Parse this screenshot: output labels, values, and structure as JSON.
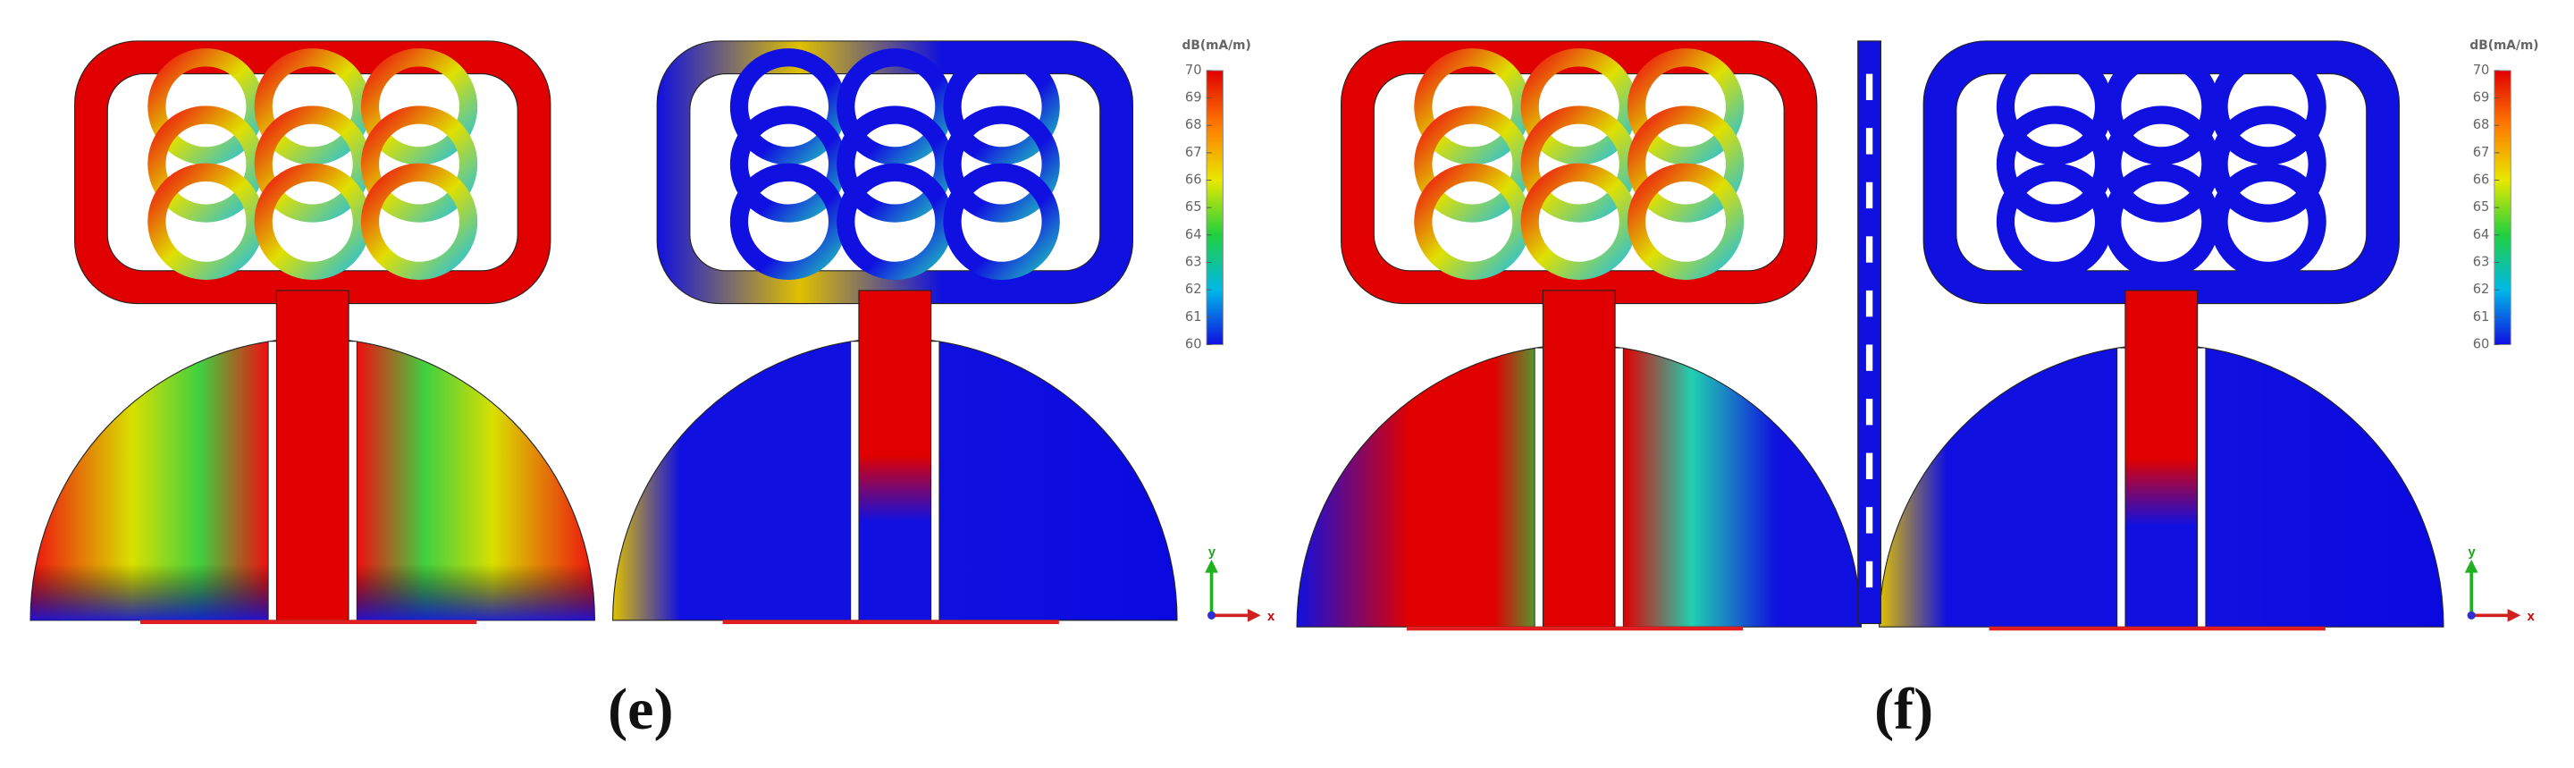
{
  "panels": [
    {
      "label": "(e)",
      "colorbar": {
        "unit": "dB(mA/m)",
        "ticks": [
          70,
          69,
          68,
          67,
          66,
          65,
          64,
          63,
          62,
          61,
          60
        ]
      },
      "axes": {
        "y": "y",
        "x": "x"
      }
    },
    {
      "label": "(f)",
      "colorbar": {
        "unit": "dB(mA/m)",
        "ticks": [
          70,
          69,
          68,
          67,
          66,
          65,
          64,
          63,
          62,
          61,
          60
        ]
      },
      "axes": {
        "y": "y",
        "x": "x"
      }
    }
  ]
}
